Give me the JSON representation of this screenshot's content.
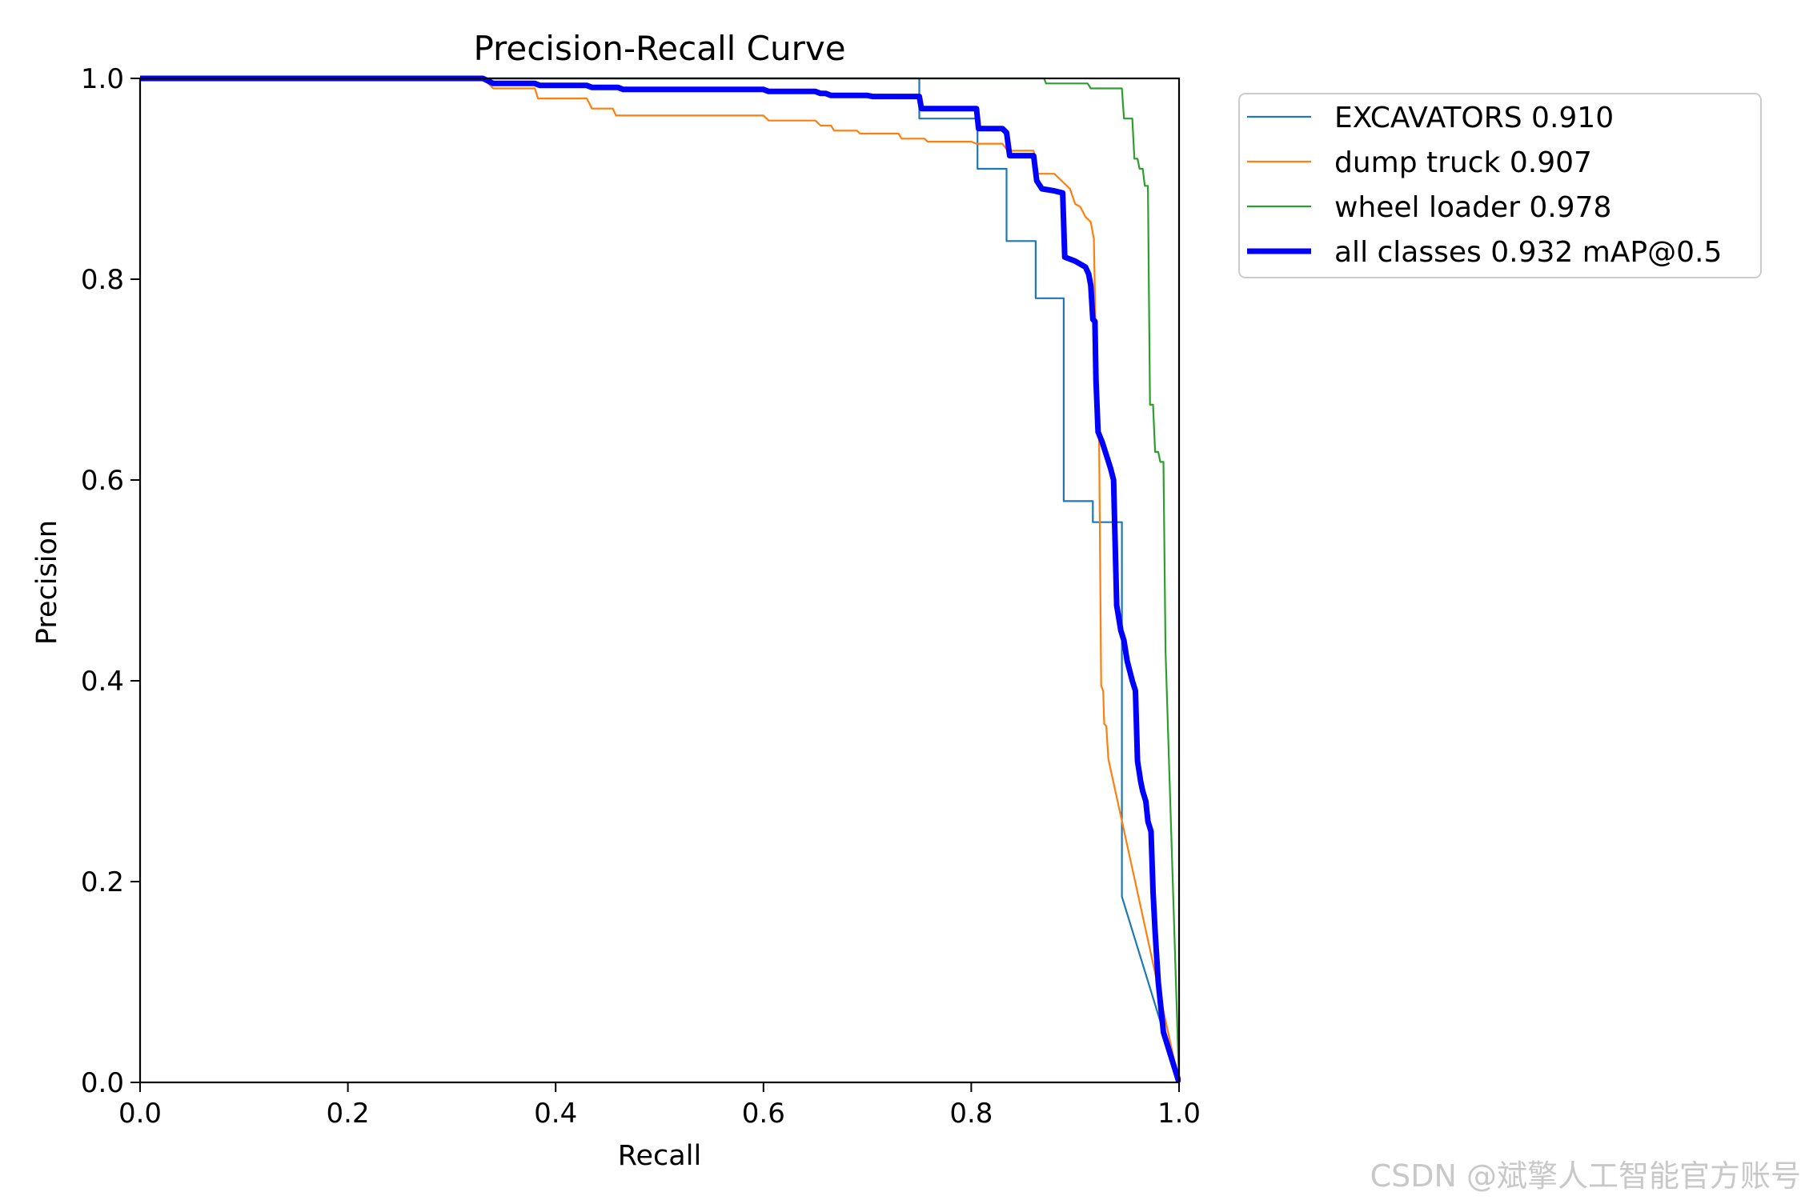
{
  "chart_data": {
    "type": "line",
    "title": "Precision-Recall Curve",
    "xlabel": "Recall",
    "ylabel": "Precision",
    "xlim": [
      0,
      1
    ],
    "ylim": [
      0,
      1
    ],
    "xticks": [
      "0.0",
      "0.2",
      "0.4",
      "0.6",
      "0.8",
      "1.0"
    ],
    "yticks": [
      "0.0",
      "0.2",
      "0.4",
      "0.6",
      "0.8",
      "1.0"
    ],
    "grid": false,
    "legend_position": "outside-right-top",
    "series": [
      {
        "name": "EXCAVATORS 0.910",
        "color": "#1f77b4",
        "width": "thin",
        "points": [
          [
            0,
            1
          ],
          [
            0.75,
            1
          ],
          [
            0.75,
            0.96
          ],
          [
            0.806,
            0.96
          ],
          [
            0.806,
            0.91
          ],
          [
            0.834,
            0.91
          ],
          [
            0.834,
            0.838
          ],
          [
            0.862,
            0.838
          ],
          [
            0.862,
            0.781
          ],
          [
            0.889,
            0.781
          ],
          [
            0.889,
            0.579
          ],
          [
            0.917,
            0.579
          ],
          [
            0.917,
            0.558
          ],
          [
            0.945,
            0.558
          ],
          [
            0.945,
            0.185
          ],
          [
            1,
            0
          ]
        ]
      },
      {
        "name": "dump truck 0.907",
        "color": "#ff7f0e",
        "width": "thin",
        "points": [
          [
            0,
            1
          ],
          [
            0.33,
            1
          ],
          [
            0.34,
            0.99
          ],
          [
            0.38,
            0.99
          ],
          [
            0.383,
            0.98
          ],
          [
            0.43,
            0.98
          ],
          [
            0.435,
            0.97
          ],
          [
            0.455,
            0.97
          ],
          [
            0.458,
            0.963
          ],
          [
            0.6,
            0.963
          ],
          [
            0.605,
            0.958
          ],
          [
            0.65,
            0.958
          ],
          [
            0.655,
            0.953
          ],
          [
            0.665,
            0.953
          ],
          [
            0.668,
            0.948
          ],
          [
            0.69,
            0.948
          ],
          [
            0.693,
            0.945
          ],
          [
            0.73,
            0.945
          ],
          [
            0.733,
            0.94
          ],
          [
            0.755,
            0.94
          ],
          [
            0.758,
            0.937
          ],
          [
            0.8,
            0.937
          ],
          [
            0.805,
            0.935
          ],
          [
            0.83,
            0.935
          ],
          [
            0.835,
            0.928
          ],
          [
            0.86,
            0.928
          ],
          [
            0.864,
            0.905
          ],
          [
            0.88,
            0.905
          ],
          [
            0.895,
            0.89
          ],
          [
            0.9,
            0.875
          ],
          [
            0.905,
            0.872
          ],
          [
            0.91,
            0.862
          ],
          [
            0.915,
            0.857
          ],
          [
            0.918,
            0.84
          ],
          [
            0.92,
            0.725
          ],
          [
            0.923,
            0.64
          ],
          [
            0.925,
            0.395
          ],
          [
            0.927,
            0.39
          ],
          [
            0.928,
            0.357
          ],
          [
            0.93,
            0.355
          ],
          [
            0.932,
            0.322
          ],
          [
            1,
            0
          ]
        ]
      },
      {
        "name": "wheel loader 0.978",
        "color": "#2ca02c",
        "width": "thin",
        "points": [
          [
            0,
            1
          ],
          [
            0.87,
            1
          ],
          [
            0.872,
            0.995
          ],
          [
            0.912,
            0.995
          ],
          [
            0.915,
            0.99
          ],
          [
            0.945,
            0.99
          ],
          [
            0.947,
            0.96
          ],
          [
            0.955,
            0.96
          ],
          [
            0.957,
            0.92
          ],
          [
            0.96,
            0.92
          ],
          [
            0.962,
            0.91
          ],
          [
            0.965,
            0.91
          ],
          [
            0.967,
            0.893
          ],
          [
            0.97,
            0.893
          ],
          [
            0.972,
            0.675
          ],
          [
            0.975,
            0.675
          ],
          [
            0.977,
            0.628
          ],
          [
            0.98,
            0.628
          ],
          [
            0.982,
            0.618
          ],
          [
            0.985,
            0.618
          ],
          [
            0.987,
            0.43
          ],
          [
            1,
            0
          ]
        ]
      },
      {
        "name": "all classes 0.932 mAP@0.5",
        "color": "#0000ff",
        "width": "thick",
        "points": [
          [
            0,
            1
          ],
          [
            0.33,
            1
          ],
          [
            0.34,
            0.995
          ],
          [
            0.38,
            0.995
          ],
          [
            0.385,
            0.993
          ],
          [
            0.43,
            0.993
          ],
          [
            0.435,
            0.991
          ],
          [
            0.46,
            0.991
          ],
          [
            0.465,
            0.989
          ],
          [
            0.6,
            0.989
          ],
          [
            0.605,
            0.987
          ],
          [
            0.65,
            0.987
          ],
          [
            0.655,
            0.985
          ],
          [
            0.66,
            0.985
          ],
          [
            0.665,
            0.983
          ],
          [
            0.7,
            0.983
          ],
          [
            0.705,
            0.982
          ],
          [
            0.75,
            0.982
          ],
          [
            0.752,
            0.97
          ],
          [
            0.805,
            0.97
          ],
          [
            0.807,
            0.95
          ],
          [
            0.83,
            0.95
          ],
          [
            0.834,
            0.946
          ],
          [
            0.837,
            0.923
          ],
          [
            0.86,
            0.923
          ],
          [
            0.863,
            0.898
          ],
          [
            0.868,
            0.89
          ],
          [
            0.88,
            0.888
          ],
          [
            0.888,
            0.886
          ],
          [
            0.89,
            0.822
          ],
          [
            0.9,
            0.818
          ],
          [
            0.91,
            0.812
          ],
          [
            0.913,
            0.805
          ],
          [
            0.915,
            0.794
          ],
          [
            0.917,
            0.76
          ],
          [
            0.919,
            0.758
          ],
          [
            0.92,
            0.7
          ],
          [
            0.922,
            0.648
          ],
          [
            0.926,
            0.638
          ],
          [
            0.93,
            0.625
          ],
          [
            0.934,
            0.612
          ],
          [
            0.937,
            0.6
          ],
          [
            0.94,
            0.475
          ],
          [
            0.944,
            0.45
          ],
          [
            0.947,
            0.44
          ],
          [
            0.95,
            0.42
          ],
          [
            0.955,
            0.4
          ],
          [
            0.958,
            0.39
          ],
          [
            0.96,
            0.32
          ],
          [
            0.963,
            0.3
          ],
          [
            0.965,
            0.29
          ],
          [
            0.968,
            0.28
          ],
          [
            0.97,
            0.26
          ],
          [
            0.973,
            0.25
          ],
          [
            0.975,
            0.19
          ],
          [
            0.977,
            0.15
          ],
          [
            0.98,
            0.1
          ],
          [
            0.985,
            0.05
          ],
          [
            1,
            0
          ]
        ]
      }
    ]
  },
  "watermark": "CSDN @斌擎人工智能官方账号"
}
